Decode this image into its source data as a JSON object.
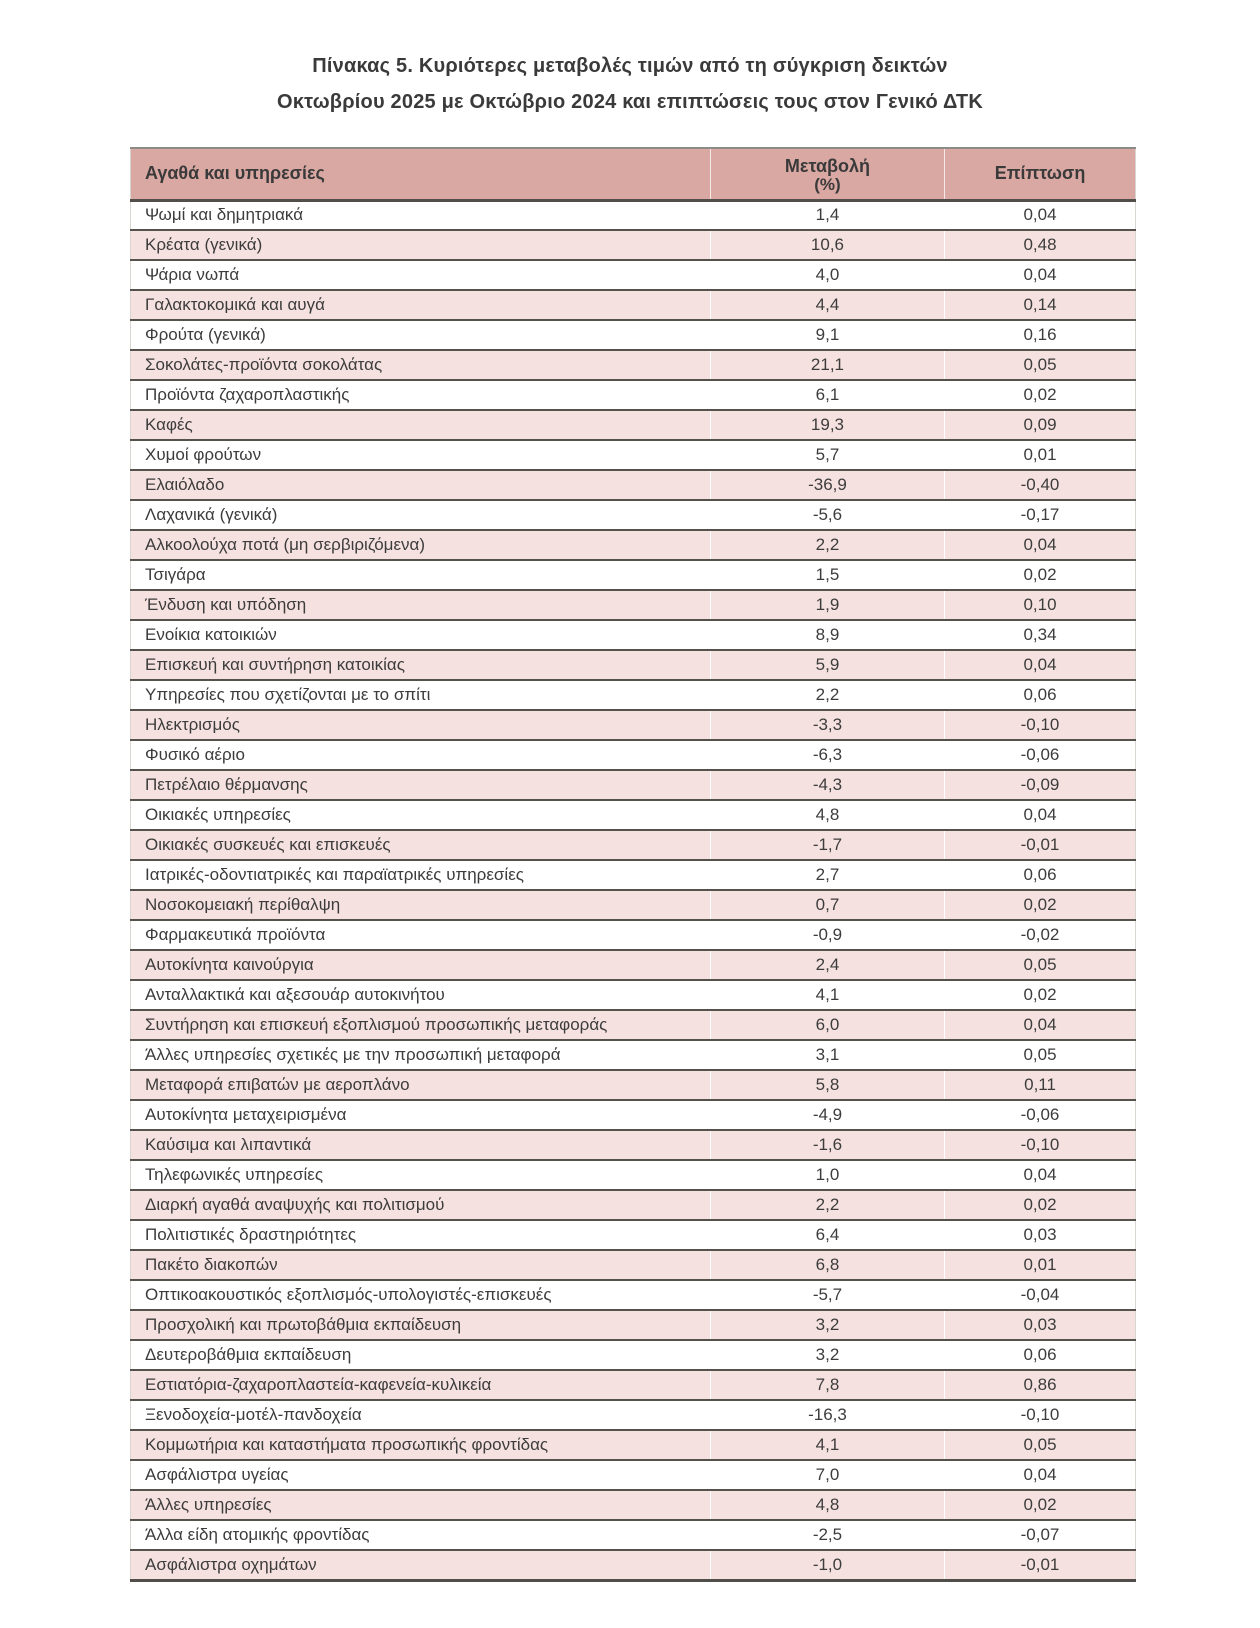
{
  "title": {
    "line1": "Πίνακας 5. Κυριότερες μεταβολές τιμών από τη σύγκριση δεικτών",
    "line2": "Οκτωβρίου 2025 με Οκτώβριο 2024 και επιπτώσεις τους στον Γενικό ΔΤΚ"
  },
  "colors": {
    "header_bg": "#d9a8a3",
    "stripe_bg": "#f5e2e0",
    "row_border": "#55514b",
    "text": "#3d3c3c"
  },
  "table": {
    "headers": {
      "col1": "Αγαθά και υπηρεσίες",
      "col2_line1": "Μεταβολή",
      "col2_line2": "(%)",
      "col3": "Επίπτωση"
    },
    "rows": [
      {
        "label": "Ψωμί και δημητριακά",
        "change": "1,4",
        "impact": "0,04"
      },
      {
        "label": "Κρέατα (γενικά)",
        "change": "10,6",
        "impact": "0,48"
      },
      {
        "label": "Ψάρια νωπά",
        "change": "4,0",
        "impact": "0,04"
      },
      {
        "label": "Γαλακτοκομικά και αυγά",
        "change": "4,4",
        "impact": "0,14"
      },
      {
        "label": "Φρούτα (γενικά)",
        "change": "9,1",
        "impact": "0,16"
      },
      {
        "label": "Σοκολάτες-προϊόντα σοκολάτας",
        "change": "21,1",
        "impact": "0,05"
      },
      {
        "label": "Προϊόντα ζαχαροπλαστικής",
        "change": "6,1",
        "impact": "0,02"
      },
      {
        "label": "Καφές",
        "change": "19,3",
        "impact": "0,09"
      },
      {
        "label": "Χυμοί φρούτων",
        "change": "5,7",
        "impact": "0,01"
      },
      {
        "label": "Ελαιόλαδο",
        "change": "-36,9",
        "impact": "-0,40"
      },
      {
        "label": "Λαχανικά (γενικά)",
        "change": "-5,6",
        "impact": "-0,17"
      },
      {
        "label": "Αλκοολούχα ποτά (μη σερβιριζόμενα)",
        "change": "2,2",
        "impact": "0,04"
      },
      {
        "label": "Τσιγάρα",
        "change": "1,5",
        "impact": "0,02"
      },
      {
        "label": "Ένδυση και υπόδηση",
        "change": "1,9",
        "impact": "0,10"
      },
      {
        "label": "Ενοίκια κατοικιών",
        "change": "8,9",
        "impact": "0,34"
      },
      {
        "label": "Επισκευή και συντήρηση κατοικίας",
        "change": "5,9",
        "impact": "0,04"
      },
      {
        "label": "Υπηρεσίες που σχετίζονται με το σπίτι",
        "change": "2,2",
        "impact": "0,06"
      },
      {
        "label": "Ηλεκτρισμός",
        "change": "-3,3",
        "impact": "-0,10"
      },
      {
        "label": "Φυσικό αέριο",
        "change": "-6,3",
        "impact": "-0,06"
      },
      {
        "label": "Πετρέλαιο θέρμανσης",
        "change": "-4,3",
        "impact": "-0,09"
      },
      {
        "label": "Οικιακές υπηρεσίες",
        "change": "4,8",
        "impact": "0,04"
      },
      {
        "label": "Οικιακές συσκευές και επισκευές",
        "change": "-1,7",
        "impact": "-0,01"
      },
      {
        "label": "Ιατρικές-οδοντιατρικές και παραϊατρικές υπηρεσίες",
        "change": "2,7",
        "impact": "0,06"
      },
      {
        "label": "Νοσοκομειακή περίθαλψη",
        "change": "0,7",
        "impact": "0,02"
      },
      {
        "label": "Φαρμακευτικά προϊόντα",
        "change": "-0,9",
        "impact": "-0,02"
      },
      {
        "label": "Αυτοκίνητα καινούργια",
        "change": "2,4",
        "impact": "0,05"
      },
      {
        "label": "Ανταλλακτικά και αξεσουάρ αυτοκινήτου",
        "change": "4,1",
        "impact": "0,02"
      },
      {
        "label": "Συντήρηση και επισκευή εξοπλισμού προσωπικής μεταφοράς",
        "change": "6,0",
        "impact": "0,04"
      },
      {
        "label": "Άλλες υπηρεσίες σχετικές με την προσωπική μεταφορά",
        "change": "3,1",
        "impact": "0,05"
      },
      {
        "label": "Μεταφορά επιβατών με αεροπλάνο",
        "change": "5,8",
        "impact": "0,11"
      },
      {
        "label": "Αυτοκίνητα μεταχειρισμένα",
        "change": "-4,9",
        "impact": "-0,06"
      },
      {
        "label": "Καύσιμα και λιπαντικά",
        "change": "-1,6",
        "impact": "-0,10"
      },
      {
        "label": "Τηλεφωνικές υπηρεσίες",
        "change": "1,0",
        "impact": "0,04"
      },
      {
        "label": "Διαρκή αγαθά αναψυχής και πολιτισμού",
        "change": "2,2",
        "impact": "0,02"
      },
      {
        "label": "Πολιτιστικές δραστηριότητες",
        "change": "6,4",
        "impact": "0,03"
      },
      {
        "label": "Πακέτο διακοπών",
        "change": "6,8",
        "impact": "0,01"
      },
      {
        "label": "Οπτικοακουστικός εξοπλισμός-υπολογιστές-επισκευές",
        "change": "-5,7",
        "impact": "-0,04"
      },
      {
        "label": "Προσχολική και πρωτοβάθμια εκπαίδευση",
        "change": "3,2",
        "impact": "0,03"
      },
      {
        "label": "Δευτεροβάθμια εκπαίδευση",
        "change": "3,2",
        "impact": "0,06"
      },
      {
        "label": "Εστιατόρια-ζαχαροπλαστεία-καφενεία-κυλικεία",
        "change": "7,8",
        "impact": "0,86"
      },
      {
        "label": "Ξενοδοχεία-μοτέλ-πανδοχεία",
        "change": "-16,3",
        "impact": "-0,10"
      },
      {
        "label": "Κομμωτήρια και καταστήματα προσωπικής φροντίδας",
        "change": "4,1",
        "impact": "0,05"
      },
      {
        "label": "Ασφάλιστρα υγείας",
        "change": "7,0",
        "impact": "0,04"
      },
      {
        "label": "Άλλες υπηρεσίες",
        "change": "4,8",
        "impact": "0,02"
      },
      {
        "label": "Άλλα είδη ατομικής φροντίδας",
        "change": "-2,5",
        "impact": "-0,07"
      },
      {
        "label": "Ασφάλιστρα οχημάτων",
        "change": "-1,0",
        "impact": "-0,01"
      }
    ]
  }
}
